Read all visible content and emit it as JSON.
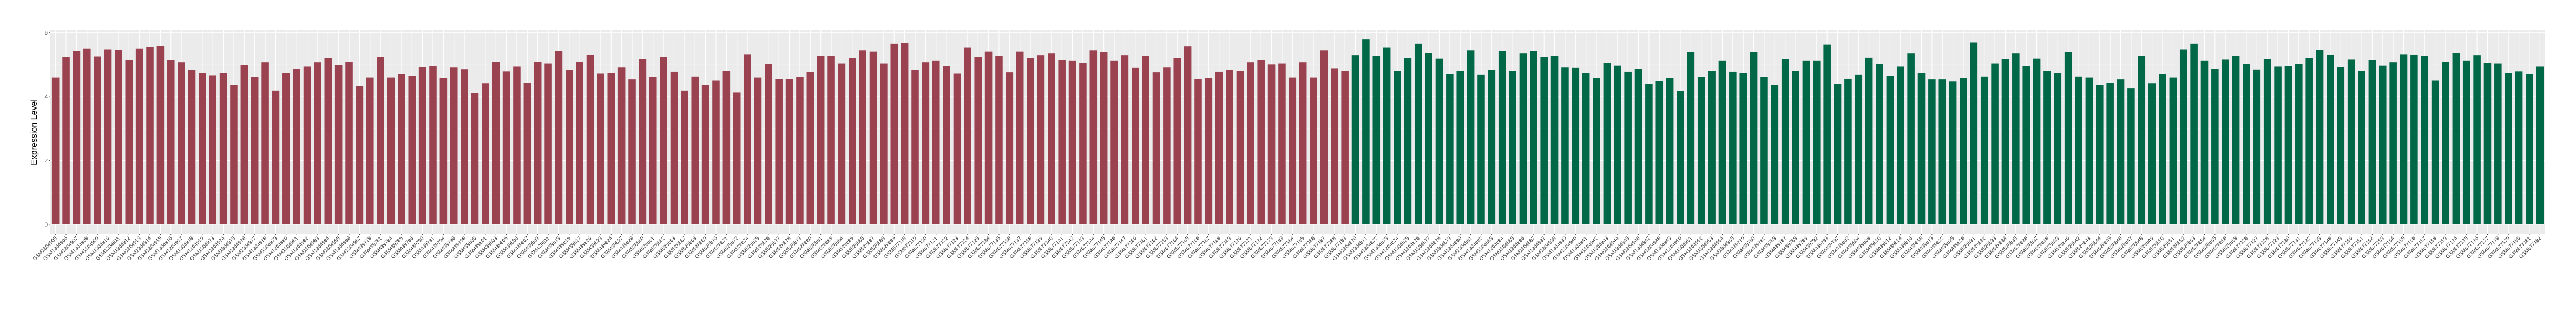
{
  "chart_data": {
    "type": "bar",
    "title": "",
    "xlabel": "",
    "ylabel": "Expression Level",
    "ylim": [
      -0.29,
      6.08
    ],
    "yticks": [
      0,
      2,
      4,
      6
    ],
    "grid": true,
    "legend": "none",
    "panel_background": "#EBEBEB",
    "series": [
      {
        "color": "#9B4251",
        "categories": [
          "GSM1304905",
          "GSM1304906",
          "GSM1304907",
          "GSM1304908",
          "GSM1304909",
          "GSM1304910",
          "GSM1304911",
          "GSM1304912",
          "GSM1304913",
          "GSM1304914",
          "GSM1304915",
          "GSM1304916",
          "GSM1304917",
          "GSM1304918",
          "GSM1304919",
          "GSM1304973",
          "GSM1304974",
          "GSM1304975",
          "GSM1304976",
          "GSM1304977",
          "GSM1304978",
          "GSM1304979",
          "GSM1304980",
          "GSM1304981",
          "GSM1304982",
          "GSM1304983",
          "GSM1304984",
          "GSM1304985",
          "GSM1304986",
          "GSM1304987",
          "GSM439778",
          "GSM439781",
          "GSM439784",
          "GSM439785",
          "GSM439786",
          "GSM439790",
          "GSM439791",
          "GSM439794",
          "GSM439796",
          "GSM439798",
          "GSM439800",
          "GSM439801",
          "GSM439803",
          "GSM439805",
          "GSM439806",
          "GSM439807",
          "GSM439809",
          "GSM439811",
          "GSM439813",
          "GSM439815",
          "GSM439817",
          "GSM439820",
          "GSM439823",
          "GSM439824",
          "GSM439827",
          "GSM439828",
          "GSM528860",
          "GSM528861",
          "GSM528862",
          "GSM528863",
          "GSM528867",
          "GSM528868",
          "GSM528869",
          "GSM528870",
          "GSM528871",
          "GSM528872",
          "GSM528874",
          "GSM528875",
          "GSM528876",
          "GSM528877",
          "GSM528878",
          "GSM528879",
          "GSM528880",
          "GSM528881",
          "GSM528883",
          "GSM528884",
          "GSM528885",
          "GSM528886",
          "GSM528887",
          "GSM528888",
          "GSM528889",
          "GSM677118",
          "GSM677119",
          "GSM677120",
          "GSM677121",
          "GSM677122",
          "GSM677123",
          "GSM677124",
          "GSM677125",
          "GSM677134",
          "GSM677135",
          "GSM677136",
          "GSM677137",
          "GSM677138",
          "GSM677139",
          "GSM677140",
          "GSM677141",
          "GSM677142",
          "GSM677143",
          "GSM677144",
          "GSM677145",
          "GSM677146",
          "GSM677147",
          "GSM677160",
          "GSM677161",
          "GSM677162",
          "GSM677163",
          "GSM677164",
          "GSM677165",
          "GSM677166",
          "GSM677167",
          "GSM677168",
          "GSM677169",
          "GSM677170",
          "GSM677171",
          "GSM677172",
          "GSM677173",
          "GSM677183",
          "GSM677184",
          "GSM677185",
          "GSM677186",
          "GSM677187",
          "GSM677188",
          "GSM677189"
        ],
        "values": [
          4.6,
          5.25,
          5.43,
          5.51,
          5.26,
          5.48,
          5.47,
          5.15,
          5.51,
          5.55,
          5.58,
          5.15,
          5.08,
          4.83,
          4.73,
          4.67,
          4.73,
          4.37,
          4.99,
          4.61,
          5.08,
          4.19,
          4.74,
          4.88,
          4.94,
          5.08,
          5.21,
          4.99,
          5.09,
          4.34,
          4.6,
          5.24,
          4.6,
          4.7,
          4.65,
          4.92,
          4.96,
          4.58,
          4.91,
          4.86,
          4.11,
          4.42,
          5.1,
          4.79,
          4.94,
          4.43,
          5.09,
          5.04,
          5.43,
          4.83,
          5.1,
          5.32,
          4.72,
          4.74,
          4.91,
          4.54,
          5.18,
          4.61,
          5.24,
          4.78,
          4.19,
          4.63,
          4.37,
          4.5,
          4.81,
          4.13,
          5.33,
          4.6,
          5.02,
          4.55,
          4.55,
          4.61,
          4.77,
          5.27,
          5.27,
          5.04,
          5.21,
          5.45,
          5.41,
          5.04,
          5.66,
          5.68,
          4.83,
          5.08,
          5.12,
          4.96,
          4.72,
          5.53,
          5.25,
          5.41,
          5.27,
          4.76,
          5.41,
          5.21,
          5.3,
          5.35,
          5.14,
          5.12,
          5.06,
          5.45,
          5.4,
          5.12,
          5.3,
          4.9,
          5.27,
          4.76,
          4.91,
          5.21,
          5.57,
          4.55,
          4.58,
          4.78,
          4.83,
          4.81,
          5.08,
          5.14,
          5.01,
          5.04,
          4.6,
          5.08,
          4.6,
          5.45,
          4.89,
          4.8
        ]
      },
      {
        "color": "#006747",
        "categories": [
          "GSM1304870",
          "GSM1304871",
          "GSM1304872",
          "GSM1304873",
          "GSM1304874",
          "GSM1304875",
          "GSM1304876",
          "GSM1304877",
          "GSM1304878",
          "GSM1304879",
          "GSM1304880",
          "GSM1304881",
          "GSM1304882",
          "GSM1304883",
          "GSM1304884",
          "GSM1304885",
          "GSM1304886",
          "GSM1304887",
          "GSM1304937",
          "GSM1304938",
          "GSM1304939",
          "GSM1304940",
          "GSM1304941",
          "GSM1304942",
          "GSM1304943",
          "GSM1304944",
          "GSM1304945",
          "GSM1304946",
          "GSM1304947",
          "GSM1304948",
          "GSM1304949",
          "GSM1304950",
          "GSM1304951",
          "GSM1304952",
          "GSM1304953",
          "GSM1304954",
          "GSM1304955",
          "GSM439779",
          "GSM439780",
          "GSM439782",
          "GSM439783",
          "GSM439787",
          "GSM439788",
          "GSM439789",
          "GSM439792",
          "GSM439793",
          "GSM439797",
          "GSM439802",
          "GSM439804",
          "GSM439808",
          "GSM439810",
          "GSM439812",
          "GSM439814",
          "GSM439816",
          "GSM439818",
          "GSM439819",
          "GSM439822",
          "GSM439825",
          "GSM439826",
          "GSM528831",
          "GSM528832",
          "GSM528833",
          "GSM528834",
          "GSM528835",
          "GSM528836",
          "GSM528837",
          "GSM528838",
          "GSM528839",
          "GSM528840",
          "GSM528842",
          "GSM528843",
          "GSM528844",
          "GSM528845",
          "GSM528846",
          "GSM528847",
          "GSM528848",
          "GSM528849",
          "GSM528850",
          "GSM528851",
          "GSM528852",
          "GSM528853",
          "GSM528854",
          "GSM528855",
          "GSM528856",
          "GSM528858",
          "GSM677126",
          "GSM677127",
          "GSM677128",
          "GSM677129",
          "GSM677130",
          "GSM677131",
          "GSM677132",
          "GSM677133",
          "GSM677148",
          "GSM677149",
          "GSM677150",
          "GSM677151",
          "GSM677152",
          "GSM677153",
          "GSM677154",
          "GSM677155",
          "GSM677156",
          "GSM677157",
          "GSM677158",
          "GSM677159",
          "GSM677174",
          "GSM677175",
          "GSM677176",
          "GSM677177",
          "GSM677178",
          "GSM677179",
          "GSM677180",
          "GSM677181",
          "GSM677182"
        ],
        "values": [
          5.3,
          5.79,
          5.27,
          5.53,
          4.8,
          5.21,
          5.66,
          5.37,
          5.19,
          4.7,
          4.81,
          5.45,
          4.68,
          4.83,
          5.43,
          4.8,
          5.35,
          5.43,
          5.24,
          5.27,
          4.91,
          4.9,
          4.73,
          4.58,
          5.06,
          4.97,
          4.78,
          4.88,
          4.39,
          4.48,
          4.58,
          4.18,
          5.39,
          4.61,
          4.81,
          5.12,
          4.78,
          4.74,
          5.39,
          4.61,
          4.37,
          5.17,
          4.8,
          5.12,
          5.12,
          5.63,
          4.39,
          4.56,
          4.68,
          5.22,
          5.03,
          4.65,
          4.94,
          5.35,
          4.74,
          4.54,
          4.54,
          4.47,
          4.58,
          5.7,
          4.63,
          5.04,
          5.17,
          5.35,
          4.96,
          5.19,
          4.8,
          4.73,
          5.4,
          4.63,
          4.6,
          4.36,
          4.43,
          4.54,
          4.27,
          5.27,
          4.42,
          4.71,
          4.6,
          5.48,
          5.66,
          5.12,
          4.88,
          5.16,
          5.27,
          5.03,
          4.85,
          5.17,
          4.94,
          4.96,
          5.03,
          5.21,
          5.46,
          5.32,
          4.92,
          5.16,
          4.81,
          5.14,
          4.97,
          5.08,
          5.33,
          5.32,
          5.27,
          4.5,
          5.09,
          5.36,
          5.12,
          5.3,
          5.06,
          5.04,
          4.74,
          4.79,
          4.7,
          4.94
        ]
      }
    ]
  }
}
